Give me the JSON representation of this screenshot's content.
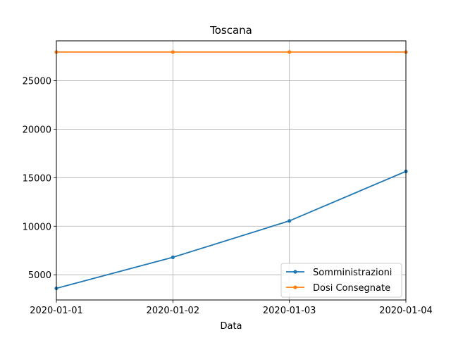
{
  "chart_data": {
    "type": "line",
    "title": "Toscana",
    "xlabel": "Data",
    "ylabel": "",
    "x": [
      "2020-01-01",
      "2020-01-02",
      "2020-01-03",
      "2020-01-04"
    ],
    "series": [
      {
        "name": "Somministrazioni",
        "values": [
          3600,
          6800,
          10550,
          15650
        ],
        "color": "#1f77b4"
      },
      {
        "name": "Dosi Consegnate",
        "values": [
          27950,
          27950,
          27950,
          27950
        ],
        "color": "#ff7f0e"
      }
    ],
    "ylim": [
      2400,
      29100
    ],
    "yticks": [
      5000,
      10000,
      15000,
      20000,
      25000
    ],
    "grid": true,
    "legend_position": "lower-right"
  }
}
